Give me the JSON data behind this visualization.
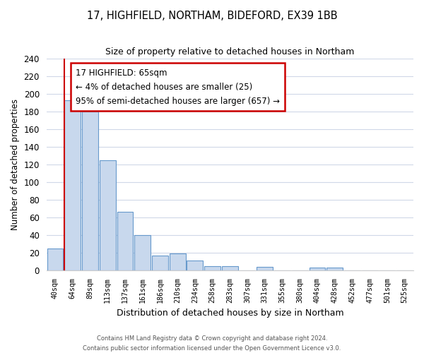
{
  "title": "17, HIGHFIELD, NORTHAM, BIDEFORD, EX39 1BB",
  "subtitle": "Size of property relative to detached houses in Northam",
  "xlabel": "Distribution of detached houses by size in Northam",
  "ylabel": "Number of detached properties",
  "bar_labels": [
    "40sqm",
    "64sqm",
    "89sqm",
    "113sqm",
    "137sqm",
    "161sqm",
    "186sqm",
    "210sqm",
    "234sqm",
    "258sqm",
    "283sqm",
    "307sqm",
    "331sqm",
    "355sqm",
    "380sqm",
    "404sqm",
    "428sqm",
    "452sqm",
    "477sqm",
    "501sqm",
    "525sqm"
  ],
  "bar_values": [
    25,
    193,
    180,
    125,
    66,
    40,
    17,
    19,
    11,
    5,
    5,
    0,
    4,
    0,
    0,
    3,
    3,
    0,
    0,
    0,
    0
  ],
  "bar_fill_color": "#c8d8ed",
  "bar_edge_color": "#6699cc",
  "vline_color": "#cc0000",
  "ylim": [
    0,
    240
  ],
  "yticks": [
    0,
    20,
    40,
    60,
    80,
    100,
    120,
    140,
    160,
    180,
    200,
    220,
    240
  ],
  "annotation_title": "17 HIGHFIELD: 65sqm",
  "annotation_line1": "← 4% of detached houses are smaller (25)",
  "annotation_line2": "95% of semi-detached houses are larger (657) →",
  "annotation_box_color": "#ffffff",
  "annotation_box_edge": "#cc0000",
  "footer1": "Contains HM Land Registry data © Crown copyright and database right 2024.",
  "footer2": "Contains public sector information licensed under the Open Government Licence v3.0.",
  "bg_color": "#ffffff",
  "plot_bg_color": "#ffffff",
  "grid_color": "#d0d8e8"
}
